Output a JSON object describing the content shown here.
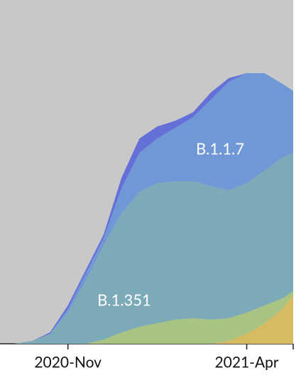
{
  "chart_data": {
    "type": "area",
    "stacked": true,
    "x": [
      -1.5,
      -1,
      -0.5,
      0,
      0.5,
      1,
      1.5,
      2,
      2.5,
      3,
      3.5,
      4,
      4.5,
      5,
      5.5,
      6,
      6.3
    ],
    "xlim": [
      -1.9,
      6.3
    ],
    "xticks": [
      {
        "value": 0,
        "label": "2020-Nov"
      },
      {
        "value": 5,
        "label": "2021-Apr"
      }
    ],
    "ylim": [
      0,
      484
    ],
    "background": "#c8c8c8",
    "series": [
      {
        "color": "#d6bb62",
        "values": [
          0,
          0,
          0,
          0,
          0,
          0,
          0,
          0,
          0,
          0,
          0,
          0,
          4,
          14,
          29,
          49,
          69
        ]
      },
      {
        "color": "#a8c482",
        "values": [
          0,
          0,
          0,
          0,
          0,
          6,
          16,
          24,
          29,
          34,
          36,
          34,
          32,
          30,
          25,
          15,
          5
        ]
      },
      {
        "name": "B.1.351",
        "color": "#7caab8",
        "values": [
          0,
          4,
          14,
          44,
          89,
          133,
          168,
          190,
          197,
          195,
          193,
          188,
          180,
          182,
          190,
          198,
          195
        ]
      },
      {
        "name": "B.1.1.7",
        "color": "#7098d6",
        "values": [
          0,
          0,
          0,
          5,
          10,
          10,
          35,
          55,
          63,
          75,
          90,
          122,
          153,
          155,
          137,
          104,
          87
        ]
      },
      {
        "color": "#6470d8",
        "values": [
          0,
          0,
          2,
          5,
          5,
          5,
          15,
          20,
          17,
          10,
          7,
          10,
          5,
          0,
          0,
          0,
          0
        ]
      }
    ]
  }
}
